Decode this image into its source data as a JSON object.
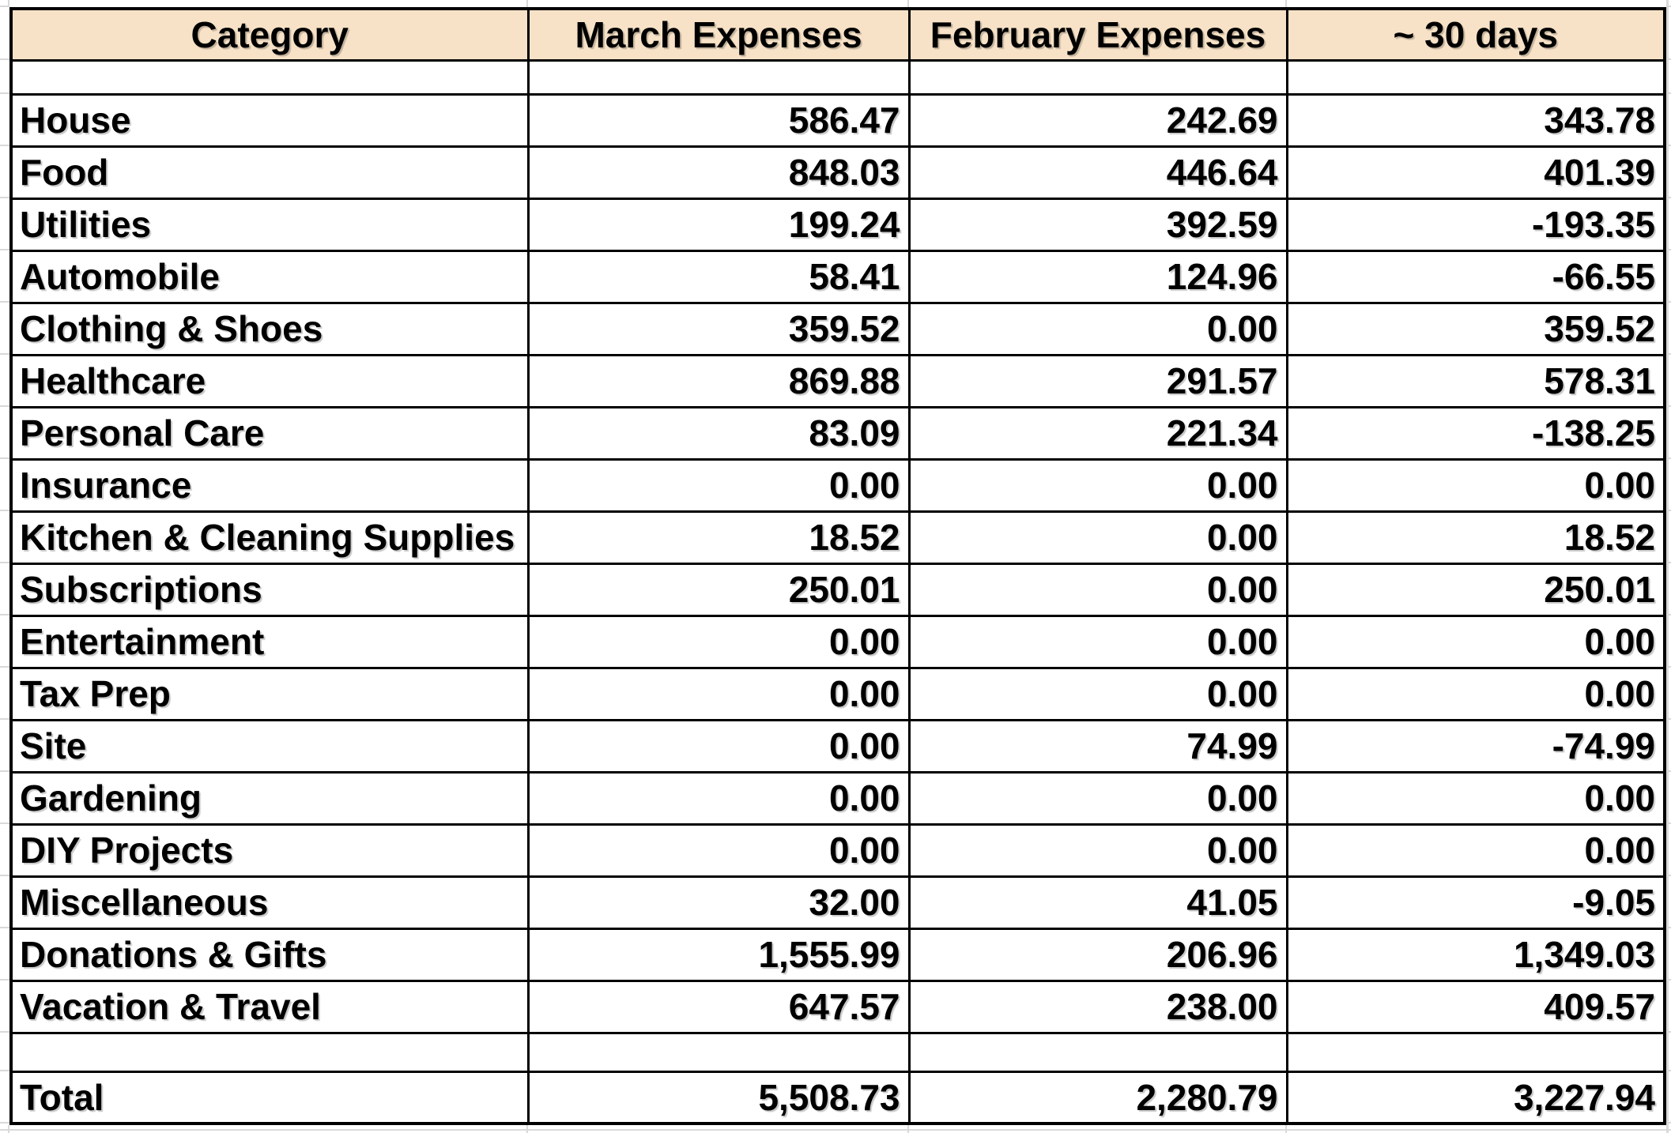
{
  "table": {
    "columns": [
      "Category",
      "March Expenses",
      "February Expenses",
      "~ 30 days"
    ],
    "rows": [
      [
        "House",
        "586.47",
        "242.69",
        "343.78"
      ],
      [
        "Food",
        "848.03",
        "446.64",
        "401.39"
      ],
      [
        "Utilities",
        "199.24",
        "392.59",
        "-193.35"
      ],
      [
        "Automobile",
        "58.41",
        "124.96",
        "-66.55"
      ],
      [
        "Clothing & Shoes",
        "359.52",
        "0.00",
        "359.52"
      ],
      [
        "Healthcare",
        "869.88",
        "291.57",
        "578.31"
      ],
      [
        "Personal Care",
        "83.09",
        "221.34",
        "-138.25"
      ],
      [
        "Insurance",
        "0.00",
        "0.00",
        "0.00"
      ],
      [
        "Kitchen & Cleaning Supplies",
        "18.52",
        "0.00",
        "18.52"
      ],
      [
        "Subscriptions",
        "250.01",
        "0.00",
        "250.01"
      ],
      [
        "Entertainment",
        "0.00",
        "0.00",
        "0.00"
      ],
      [
        "Tax Prep",
        "0.00",
        "0.00",
        "0.00"
      ],
      [
        "Site",
        "0.00",
        "74.99",
        "-74.99"
      ],
      [
        "Gardening",
        "0.00",
        "0.00",
        "0.00"
      ],
      [
        "DIY Projects",
        "0.00",
        "0.00",
        "0.00"
      ],
      [
        "Miscellaneous",
        "32.00",
        "41.05",
        "-9.05"
      ],
      [
        "Donations & Gifts",
        "1,555.99",
        "206.96",
        "1,349.03"
      ],
      [
        "Vacation & Travel",
        "647.57",
        "238.00",
        "409.57"
      ]
    ],
    "total": [
      "Total",
      "5,508.73",
      "2,280.79",
      "3,227.94"
    ],
    "colors": {
      "header_bg": "#f7e2c7",
      "table_border": "#000000",
      "margin_gridline": "#d9d9d9"
    }
  }
}
